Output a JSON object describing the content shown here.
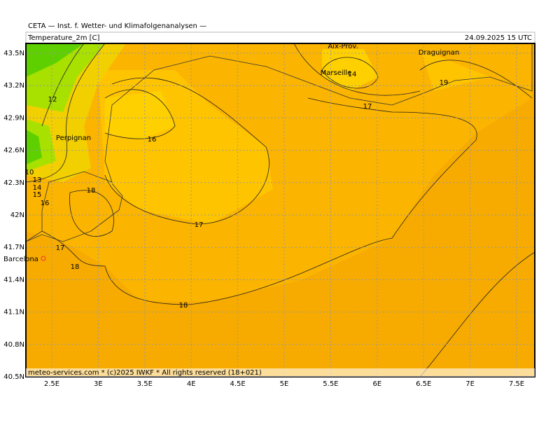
{
  "header": {
    "source": "CETA — Inst. f. Wetter- und Klimafolgenanalysen —",
    "variable": "Temperature_2m [C]",
    "time": "24.09.2025 15 UTC"
  },
  "footer": "meteo-services.com * (c)2025 IWKF * All rights reserved (18+021)",
  "lon_labels": [
    "2.5E",
    "3E",
    "3.5E",
    "4E",
    "4.5E",
    "5E",
    "5.5E",
    "6E",
    "6.5E",
    "7E",
    "7.5E"
  ],
  "lat_labels": [
    "43.5N",
    "43.2N",
    "42.9N",
    "42.6N",
    "42.3N",
    "42N",
    "41.7N",
    "41.4N",
    "41.1N",
    "40.8N",
    "40.5N"
  ],
  "places": [
    "Perpignan",
    "Barcelona",
    "Aix-Prov.",
    "Marseille",
    "Draguignan"
  ],
  "contour_labels": [
    "12",
    "16",
    "18",
    "17",
    "17",
    "18",
    "18",
    "14",
    "17",
    "19",
    "10",
    "13",
    "14",
    "15",
    "16"
  ]
}
